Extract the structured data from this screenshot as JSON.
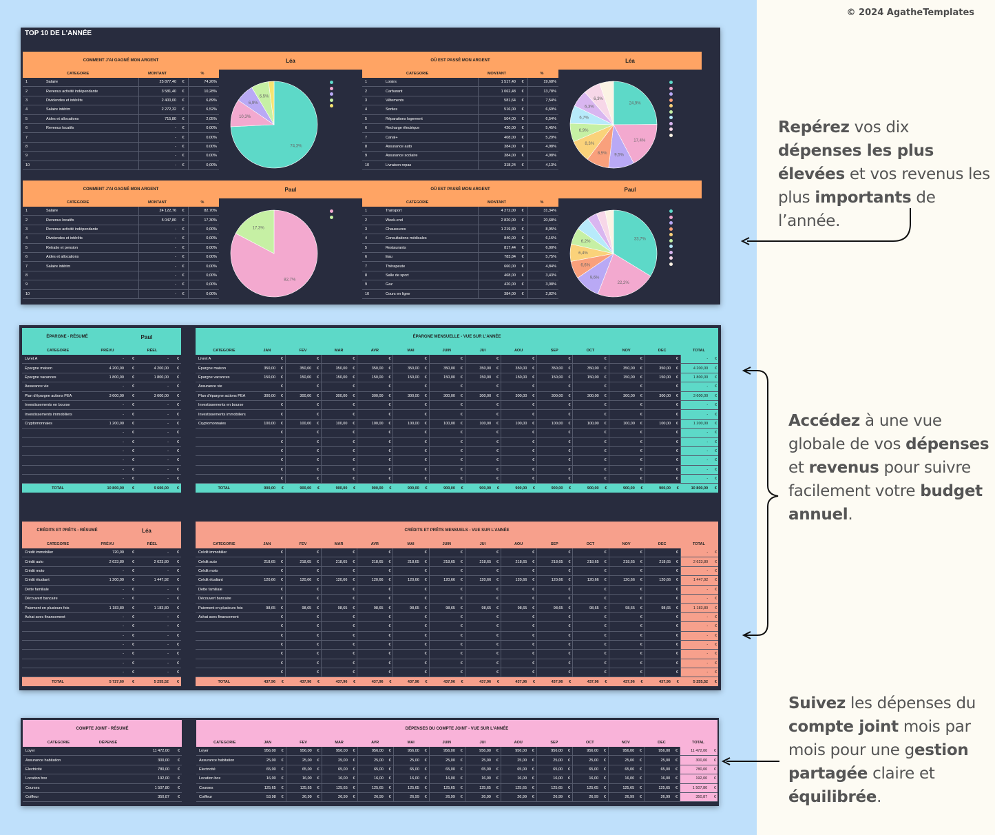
{
  "copyright": "© 2024 AgatheTemplates",
  "top10": {
    "title": "TOP 10 DE L'ANNÉE",
    "cols": [
      "CATÉGORIE",
      "MONTANT",
      "%"
    ],
    "blocks": [
      {
        "title": "COMMENT J'AI GAGNÉ MON ARGENT",
        "name": "Léa",
        "rows": [
          [
            "1",
            "Salaire",
            "25 877,40",
            "€",
            "74,26%"
          ],
          [
            "2",
            "Revenus activité indépendante",
            "3 581,40",
            "€",
            "10,28%"
          ],
          [
            "3",
            "Dividendes et intérêts",
            "2 400,00",
            "€",
            "6,89%"
          ],
          [
            "4",
            "Salaire intérim",
            "2 272,32",
            "€",
            "6,52%"
          ],
          [
            "5",
            "Aides et allocations",
            "715,80",
            "€",
            "2,05%"
          ],
          [
            "6",
            "Revenus locatifs",
            "-",
            "€",
            "0,00%"
          ],
          [
            "7",
            "",
            "-",
            "€",
            "0,00%"
          ],
          [
            "8",
            "",
            "-",
            "€",
            "0,00%"
          ],
          [
            "9",
            "",
            "-",
            "€",
            "0,00%"
          ],
          [
            "10",
            "",
            "-",
            "€",
            "0,00%"
          ]
        ],
        "pie": {
          "values": [
            74.26,
            10.28,
            6.89,
            6.52,
            2.05
          ],
          "labels": [
            "74,3%",
            "10,3%",
            "6,9%",
            "6,5%",
            ""
          ],
          "colors": [
            "#5dd9c8",
            "#f3a9cf",
            "#b9a9f5",
            "#c6f0a4",
            "#f6e470"
          ]
        }
      },
      {
        "title": "OÙ EST PASSÉ MON ARGENT",
        "name": "Léa",
        "rows": [
          [
            "1",
            "Loisirs",
            "1 517,40",
            "€",
            "19,68%"
          ],
          [
            "2",
            "Carburant",
            "1 062,48",
            "€",
            "13,78%"
          ],
          [
            "3",
            "Vêtements",
            "581,64",
            "€",
            "7,54%"
          ],
          [
            "4",
            "Sorties",
            "516,00",
            "€",
            "6,69%"
          ],
          [
            "5",
            "Réparations logement",
            "504,00",
            "€",
            "6,54%"
          ],
          [
            "6",
            "Recharge électrique",
            "420,00",
            "€",
            "5,45%"
          ],
          [
            "7",
            "Canal+",
            "408,00",
            "€",
            "5,29%"
          ],
          [
            "8",
            "Assurance auto",
            "384,00",
            "€",
            "4,98%"
          ],
          [
            "9",
            "Assurance scolaire",
            "384,00",
            "€",
            "4,98%"
          ],
          [
            "10",
            "Livraison repas",
            "318,24",
            "€",
            "4,13%"
          ]
        ],
        "pie": {
          "values": [
            24.9,
            17.4,
            9.5,
            8.5,
            8.3,
            6.9,
            6.7,
            6.3,
            6.3,
            5.2
          ],
          "labels": [
            "24,9%",
            "17,4%",
            "9,5%",
            "8,5%",
            "8,3%",
            "6,9%",
            "6,7%",
            "6,3%",
            "6,3%",
            ""
          ],
          "colors": [
            "#5dd9c8",
            "#f3a9cf",
            "#b9a9f5",
            "#f9a07c",
            "#fad27a",
            "#c6f0a4",
            "#b7eafa",
            "#d9b6f0",
            "#f7d7e8",
            "#fbf3e4"
          ]
        }
      },
      {
        "title": "COMMENT J'AI GAGNÉ MON ARGENT",
        "name": "Paul",
        "rows": [
          [
            "1",
            "Salaire",
            "24 122,76",
            "€",
            "82,70%"
          ],
          [
            "2",
            "Revenus locatifs",
            "5 047,80",
            "€",
            "17,30%"
          ],
          [
            "3",
            "Revenus activité indépendante",
            "-",
            "€",
            "0,00%"
          ],
          [
            "4",
            "Dividendes et intérêts",
            "-",
            "€",
            "0,00%"
          ],
          [
            "5",
            "Retraite et pension",
            "-",
            "€",
            "0,00%"
          ],
          [
            "6",
            "Aides et allocations",
            "-",
            "€",
            "0,00%"
          ],
          [
            "7",
            "Salaire intérim",
            "-",
            "€",
            "0,00%"
          ],
          [
            "8",
            "",
            "-",
            "€",
            "0,00%"
          ],
          [
            "9",
            "",
            "-",
            "€",
            "0,00%"
          ],
          [
            "10",
            "",
            "-",
            "€",
            "0,00%"
          ]
        ],
        "pie": {
          "values": [
            82.7,
            17.3
          ],
          "labels": [
            "82,7%",
            "17,3%"
          ],
          "colors": [
            "#f3a9cf",
            "#c6f0a4"
          ]
        }
      },
      {
        "title": "OÙ EST PASSÉ MON ARGENT",
        "name": "Paul",
        "rows": [
          [
            "1",
            "Transport",
            "4 272,00",
            "€",
            "31,34%"
          ],
          [
            "2",
            "Week-end",
            "2 820,00",
            "€",
            "20,68%"
          ],
          [
            "3",
            "Chaussures",
            "1 219,80",
            "€",
            "8,95%"
          ],
          [
            "4",
            "Consultations médicales",
            "840,00",
            "€",
            "6,16%"
          ],
          [
            "5",
            "Restaurants",
            "817,44",
            "€",
            "6,00%"
          ],
          [
            "6",
            "Eau",
            "783,84",
            "€",
            "5,75%"
          ],
          [
            "7",
            "Thérapeute",
            "660,00",
            "€",
            "4,84%"
          ],
          [
            "8",
            "Salle de sport",
            "468,00",
            "€",
            "3,43%"
          ],
          [
            "9",
            "Gaz",
            "420,00",
            "€",
            "3,08%"
          ],
          [
            "10",
            "Cours en ligne",
            "384,00",
            "€",
            "2,82%"
          ]
        ],
        "pie": {
          "values": [
            33.7,
            22.2,
            9.6,
            6.6,
            6.4,
            6.2,
            5.2,
            3.7,
            3.3,
            3.1
          ],
          "labels": [
            "33,7%",
            "22,2%",
            "9,6%",
            "6,6%",
            "6,4%",
            "6,2%",
            "",
            "",
            "",
            ""
          ],
          "colors": [
            "#5dd9c8",
            "#f3a9cf",
            "#b9a9f5",
            "#f9a07c",
            "#fad27a",
            "#c6f0a4",
            "#b7eafa",
            "#d9b6f0",
            "#f7d7e8",
            "#fbf3e4"
          ]
        }
      }
    ]
  },
  "months": [
    "JAN",
    "FÉV",
    "MAR",
    "AVR",
    "MAI",
    "JUIN",
    "JUI",
    "AOÛ",
    "SEP",
    "OCT",
    "NOV",
    "DÉC"
  ],
  "epargne": {
    "sum_title": "ÉPARGNE - RÉSUMÉ",
    "name": "Paul",
    "sum_cols": [
      "CATÉGORIE",
      "PRÉVU",
      "RÉEL"
    ],
    "mon_title": "ÉPARGNE MENSUELLE - VUE SUR L'ANNÉE",
    "cat_label": "CATÉGORIE",
    "total_label": "TOTAL",
    "total_col": "TOTAL",
    "rows": [
      {
        "cat": "Livret A",
        "prevu": "-",
        "reel": "-",
        "m": "",
        "total": "-"
      },
      {
        "cat": "Épargne maison",
        "prevu": "4 200,00",
        "reel": "4 200,00",
        "m": "350,00",
        "total": "4 200,00"
      },
      {
        "cat": "Épargne vacances",
        "prevu": "1 800,00",
        "reel": "1 800,00",
        "m": "150,00",
        "total": "1 800,00"
      },
      {
        "cat": "Assurance vie",
        "prevu": "-",
        "reel": "-",
        "m": "",
        "total": "-"
      },
      {
        "cat": "Plan d'épargne actions PEA",
        "prevu": "3 600,00",
        "reel": "3 600,00",
        "m": "300,00",
        "total": "3 600,00"
      },
      {
        "cat": "Investissements en bourse",
        "prevu": "-",
        "reel": "-",
        "m": "",
        "total": "-"
      },
      {
        "cat": "Investissements immobiliers",
        "prevu": "-",
        "reel": "-",
        "m": "",
        "total": "-"
      },
      {
        "cat": "Cryptomonnaies",
        "prevu": "1 200,00",
        "reel": "-",
        "m": "100,00",
        "total": "1 200,00"
      },
      {
        "cat": "",
        "prevu": "-",
        "reel": "-",
        "m": "",
        "total": "-"
      },
      {
        "cat": "",
        "prevu": "-",
        "reel": "-",
        "m": "",
        "total": "-"
      },
      {
        "cat": "",
        "prevu": "-",
        "reel": "-",
        "m": "",
        "total": "-"
      },
      {
        "cat": "",
        "prevu": "-",
        "reel": "-",
        "m": "",
        "total": "-"
      },
      {
        "cat": "",
        "prevu": "-",
        "reel": "-",
        "m": "",
        "total": "-"
      },
      {
        "cat": "",
        "prevu": "-",
        "reel": "-",
        "m": "",
        "total": "-"
      }
    ],
    "sum_total": {
      "prevu": "10 800,00",
      "reel": "9 600,00"
    },
    "mon_total": "900,00",
    "grand_total": "10 800,00"
  },
  "credits": {
    "sum_title": "CRÉDITS ET PRÊTS - RÉSUMÉ",
    "name": "Léa",
    "sum_cols": [
      "CATÉGORIE",
      "PRÉVU",
      "RÉEL"
    ],
    "mon_title": "CRÉDITS ET PRÊTS MENSUELS - VUE SUR L'ANNÉE",
    "cat_label": "CATÉGORIE",
    "total_label": "TOTAL",
    "total_col": "TOTAL",
    "rows": [
      {
        "cat": "Crédit immobilier",
        "prevu": "720,00",
        "reel": "-",
        "m": "",
        "total": "-"
      },
      {
        "cat": "Crédit auto",
        "prevu": "2 623,80",
        "reel": "2 623,80",
        "m": "218,65",
        "total": "2 623,80"
      },
      {
        "cat": "Crédit moto",
        "prevu": "-",
        "reel": "-",
        "m": "",
        "total": "-"
      },
      {
        "cat": "Crédit étudiant",
        "prevu": "1 200,00",
        "reel": "1 447,92",
        "m": "120,66",
        "total": "1 447,92"
      },
      {
        "cat": "Dette familiale",
        "prevu": "-",
        "reel": "-",
        "m": "",
        "total": "-"
      },
      {
        "cat": "Découvert bancaire",
        "prevu": "-",
        "reel": "-",
        "m": "",
        "total": "-"
      },
      {
        "cat": "Paiement en plusieurs fois",
        "prevu": "1 183,80",
        "reel": "1 183,80",
        "m": "98,65",
        "total": "1 183,80"
      },
      {
        "cat": "Achat avec financement",
        "prevu": "-",
        "reel": "-",
        "m": "",
        "total": "-"
      },
      {
        "cat": "",
        "prevu": "-",
        "reel": "-",
        "m": "",
        "total": "-"
      },
      {
        "cat": "",
        "prevu": "-",
        "reel": "-",
        "m": "",
        "total": "-"
      },
      {
        "cat": "",
        "prevu": "-",
        "reel": "-",
        "m": "",
        "total": "-"
      },
      {
        "cat": "",
        "prevu": "-",
        "reel": "-",
        "m": "",
        "total": "-"
      },
      {
        "cat": "",
        "prevu": "-",
        "reel": "-",
        "m": "",
        "total": "-"
      },
      {
        "cat": "",
        "prevu": "-",
        "reel": "-",
        "m": "",
        "total": "-"
      }
    ],
    "sum_total": {
      "prevu": "5 727,60",
      "reel": "5 255,52"
    },
    "mon_total": "437,96",
    "grand_total": "5 255,52"
  },
  "joint": {
    "sum_title": "COMPTE JOINT - RÉSUMÉ",
    "sum_cols": [
      "CATÉGORIE",
      "DÉPENSÉ"
    ],
    "mon_title": "DÉPENSES DU COMPTE JOINT - VUE SUR L'ANNÉE",
    "cat_label": "CATÉGORIE",
    "total_col": "TOTAL",
    "rows": [
      {
        "cat": "Loyer",
        "dep": "11 472,00",
        "m": [
          "956,00",
          "956,00",
          "956,00",
          "956,00",
          "956,00",
          "956,00",
          "956,00",
          "956,00",
          "956,00",
          "956,00",
          "956,00",
          "956,00"
        ],
        "total": "11 472,00"
      },
      {
        "cat": "Assurance habitation",
        "dep": "300,00",
        "m": [
          "25,00",
          "25,00",
          "25,00",
          "25,00",
          "25,00",
          "25,00",
          "25,00",
          "25,00",
          "25,00",
          "25,00",
          "25,00",
          "25,00"
        ],
        "total": "300,00"
      },
      {
        "cat": "Électricité",
        "dep": "780,00",
        "m": [
          "65,00",
          "65,00",
          "65,00",
          "65,00",
          "65,00",
          "65,00",
          "65,00",
          "65,00",
          "65,00",
          "65,00",
          "65,00",
          "65,00"
        ],
        "total": "780,00"
      },
      {
        "cat": "Location box",
        "dep": "192,00",
        "m": [
          "16,00",
          "16,00",
          "16,00",
          "16,00",
          "16,00",
          "16,00",
          "16,00",
          "16,00",
          "16,00",
          "16,00",
          "16,00",
          "16,00"
        ],
        "total": "192,00"
      },
      {
        "cat": "Courses",
        "dep": "1 507,80",
        "m": [
          "125,65",
          "125,65",
          "125,65",
          "125,65",
          "125,65",
          "125,65",
          "125,65",
          "125,65",
          "125,65",
          "125,65",
          "125,65",
          "125,65"
        ],
        "total": "1 507,80"
      },
      {
        "cat": "Coiffeur",
        "dep": "350,87",
        "m": [
          "53,98",
          "26,99",
          "26,99",
          "26,99",
          "26,99",
          "26,99",
          "26,99",
          "26,99",
          "26,99",
          "26,99",
          "26,99",
          "26,99"
        ],
        "total": "350,87"
      }
    ]
  },
  "callouts": {
    "c1": [
      {
        "b": "Repérez"
      },
      {
        "t": " vos dix "
      },
      {
        "b": "dépenses les plus élevées"
      },
      {
        "t": " et vos revenus les plus "
      },
      {
        "b": "importants"
      },
      {
        "t": " de l’année."
      }
    ],
    "c2": [
      {
        "b": "Accédez"
      },
      {
        "t": " à une vue globale de vos "
      },
      {
        "b": "dépenses"
      },
      {
        "t": " et "
      },
      {
        "b": "revenus"
      },
      {
        "t": " pour suivre facilement votre "
      },
      {
        "b": "budget annuel"
      },
      {
        "t": "."
      }
    ],
    "c3": [
      {
        "b": "Suivez"
      },
      {
        "t": " les dépenses du "
      },
      {
        "b": "compte joint"
      },
      {
        "t": " mois par mois pour une g"
      },
      {
        "b": "estion partagée"
      },
      {
        "t": " claire et "
      },
      {
        "b": "équilibrée"
      },
      {
        "t": "."
      }
    ]
  },
  "colors": {
    "orange": "#ffa464",
    "teal": "#5dd9c8",
    "salmon": "#f7a08c",
    "pink": "#f9b3d9",
    "panel": "#282c3e"
  }
}
